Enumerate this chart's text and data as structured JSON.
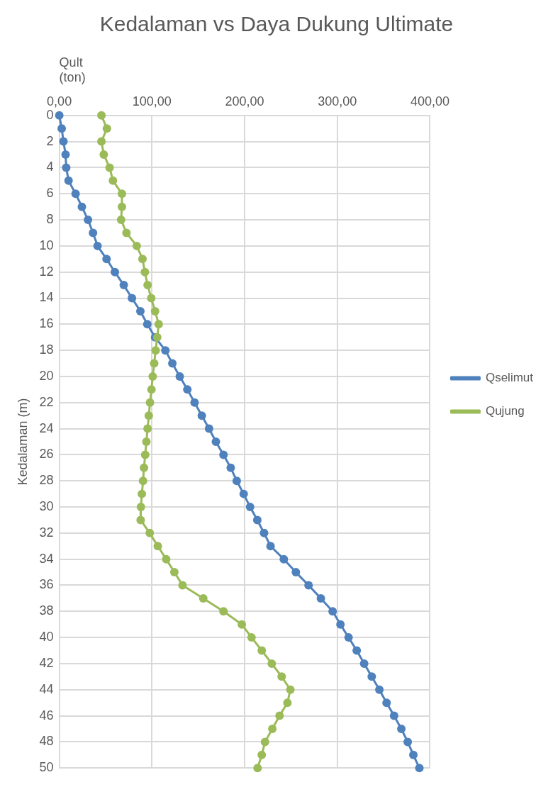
{
  "chart_data": {
    "type": "line",
    "orientation": "horizontal",
    "title": "Kedalaman vs Daya Dukung Ultimate",
    "xlabel": "Qult\n(ton)",
    "ylabel": "Kedalaman (m)",
    "x": [
      0,
      1,
      2,
      3,
      4,
      5,
      6,
      7,
      8,
      9,
      10,
      11,
      12,
      13,
      14,
      15,
      16,
      17,
      18,
      19,
      20,
      21,
      22,
      23,
      24,
      25,
      26,
      27,
      28,
      29,
      30,
      31,
      32,
      33,
      34,
      35,
      36,
      37,
      38,
      39,
      40,
      41,
      42,
      43,
      44,
      45,
      46,
      47,
      48,
      49,
      50
    ],
    "series": [
      {
        "name": "Qselimut",
        "color": "#4f81bd",
        "values": [
          0,
          2.6,
          4.5,
          6.8,
          7.5,
          10,
          17.6,
          24.4,
          31,
          36.4,
          41.3,
          51,
          60,
          69.6,
          78.4,
          87.5,
          95,
          103.4,
          114.5,
          122,
          130,
          138.2,
          146,
          153.8,
          161.6,
          169,
          177.2,
          185,
          191.5,
          199,
          205.9,
          213.7,
          221,
          228,
          242.3,
          255.3,
          269,
          282.3,
          295,
          303.4,
          312.2,
          321,
          329,
          337.2,
          345.4,
          353.2,
          361.3,
          369.1,
          376,
          382.1,
          388.6
        ]
      },
      {
        "name": "Qujung",
        "color": "#9bbb59",
        "values": [
          45.5,
          51.4,
          45.5,
          48,
          54.3,
          57.9,
          67.6,
          67.6,
          66.7,
          72.5,
          83.6,
          89.8,
          92.4,
          95.3,
          99.2,
          103.4,
          107.3,
          105.7,
          104,
          102.4,
          100.8,
          99.5,
          97.9,
          96.6,
          95.3,
          94,
          92.7,
          91.4,
          90.4,
          89.1,
          88.1,
          87.8,
          97.6,
          106.3,
          115.4,
          124.2,
          133,
          155.4,
          177.2,
          197,
          207.5,
          218.5,
          229.3,
          240,
          249.4,
          246.2,
          237.7,
          229.9,
          222,
          218.5,
          214
        ]
      }
    ],
    "xlim": [
      0,
      400
    ],
    "xticks": [
      {
        "value": 0,
        "label": "0,00"
      },
      {
        "value": 100,
        "label": "100,00"
      },
      {
        "value": 200,
        "label": "200,00"
      },
      {
        "value": 300,
        "label": "300,00"
      },
      {
        "value": 400,
        "label": "400,00"
      }
    ],
    "ylim": [
      50,
      0
    ],
    "yticks": [
      0,
      2,
      4,
      6,
      8,
      10,
      12,
      14,
      16,
      18,
      20,
      22,
      24,
      26,
      28,
      30,
      32,
      34,
      36,
      38,
      40,
      42,
      44,
      46,
      48,
      50
    ],
    "grid": true,
    "legend": "right",
    "marker": "circle",
    "line_style": "solid"
  }
}
